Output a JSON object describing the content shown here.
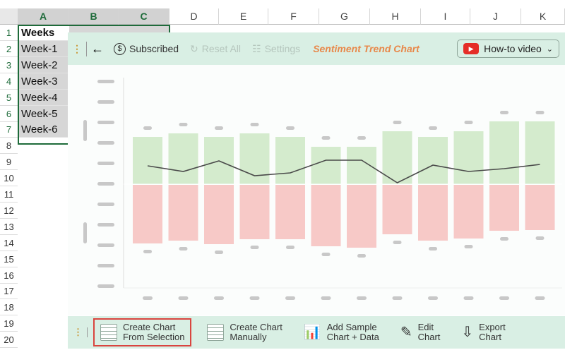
{
  "sheet": {
    "columns": [
      "A",
      "B",
      "C",
      "D",
      "E",
      "F",
      "G",
      "H",
      "I",
      "J",
      "K"
    ],
    "rows": [
      "1",
      "2",
      "3",
      "4",
      "5",
      "6",
      "7",
      "8",
      "9",
      "10",
      "11",
      "12",
      "13",
      "14",
      "15",
      "16",
      "17",
      "18",
      "19",
      "20"
    ],
    "cells_a": [
      "Weeks",
      "Week-1",
      "Week-2",
      "Week-3",
      "Week-4",
      "Week-5",
      "Week-6"
    ]
  },
  "toolbar": {
    "subscribed": "Subscribed",
    "reset": "Reset All",
    "settings": "Settings",
    "title": "Sentiment Trend Chart",
    "video": "How-to video"
  },
  "bottom": {
    "b1": [
      "Create Chart",
      "From Selection"
    ],
    "b2": [
      "Create Chart",
      "Manually"
    ],
    "b3": [
      "Add Sample",
      "Chart + Data"
    ],
    "b4": [
      "Edit",
      "Chart"
    ],
    "b5": [
      "Export",
      "Chart"
    ]
  },
  "colors": {
    "positive": "#d4ebcd",
    "negative": "#f7c9c7",
    "line": "#4a4a4a",
    "title": "#e8884a",
    "highlight": "#d9453f"
  },
  "chart_data": {
    "type": "bar",
    "title": "Sentiment Trend Chart",
    "positive": [
      67,
      72,
      67,
      72,
      67,
      53,
      53,
      75,
      67,
      75,
      89,
      89
    ],
    "negative": [
      -83,
      -79,
      -84,
      -77,
      -77,
      -87,
      -89,
      -70,
      -79,
      -76,
      -65,
      -64
    ],
    "net": [
      26,
      18,
      33,
      12,
      16,
      34,
      34,
      2,
      27,
      18,
      22,
      28
    ],
    "ylim": [
      -150,
      150
    ]
  }
}
